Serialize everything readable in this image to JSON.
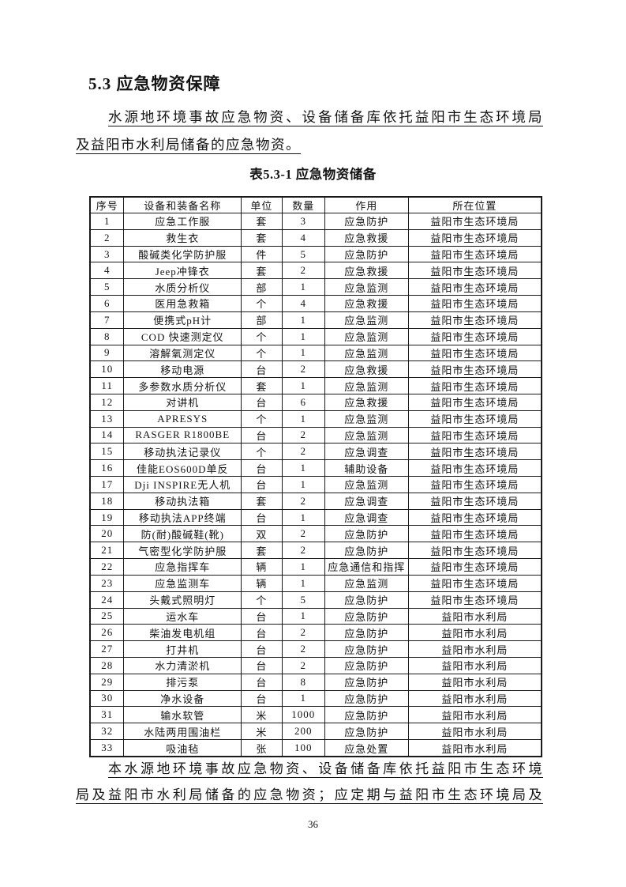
{
  "page": {
    "heading": "5.3 应急物资保障",
    "intro_line1": "水源地环境事故应急物资、设备储备库依托益阳市生态环境局",
    "intro_line2": "及益阳市水利局储备的应急物资。",
    "table_caption": "表5.3-1 应急物资储备",
    "footer_line1": "本水源地环境事故应急物资、设备储备库依托益阳市生态环境",
    "footer_line2": "局及益阳市水利局储备的应急物资；应定期与益阳市生态环境局及",
    "page_number": "36"
  },
  "table": {
    "headers": [
      "序号",
      "设备和装备名称",
      "单位",
      "数量",
      "作用",
      "所在位置"
    ],
    "rows": [
      [
        "1",
        "应急工作服",
        "套",
        "3",
        "应急防护",
        "益阳市生态环境局"
      ],
      [
        "2",
        "救生衣",
        "套",
        "4",
        "应急救援",
        "益阳市生态环境局"
      ],
      [
        "3",
        "酸碱类化学防护服",
        "件",
        "5",
        "应急防护",
        "益阳市生态环境局"
      ],
      [
        "4",
        "Jeep冲锋衣",
        "套",
        "2",
        "应急救援",
        "益阳市生态环境局"
      ],
      [
        "5",
        "水质分析仪",
        "部",
        "1",
        "应急监测",
        "益阳市生态环境局"
      ],
      [
        "6",
        "医用急救箱",
        "个",
        "4",
        "应急救援",
        "益阳市生态环境局"
      ],
      [
        "7",
        "便携式pH计",
        "部",
        "1",
        "应急监测",
        "益阳市生态环境局"
      ],
      [
        "8",
        "COD 快速测定仪",
        "个",
        "1",
        "应急监测",
        "益阳市生态环境局"
      ],
      [
        "9",
        "溶解氧测定仪",
        "个",
        "1",
        "应急监测",
        "益阳市生态环境局"
      ],
      [
        "10",
        "移动电源",
        "台",
        "2",
        "应急救援",
        "益阳市生态环境局"
      ],
      [
        "11",
        "多参数水质分析仪",
        "套",
        "1",
        "应急监测",
        "益阳市生态环境局"
      ],
      [
        "12",
        "对讲机",
        "台",
        "6",
        "应急救援",
        "益阳市生态环境局"
      ],
      [
        "13",
        "APRESYS",
        "个",
        "1",
        "应急监测",
        "益阳市生态环境局"
      ],
      [
        "14",
        "RASGER R1800BE",
        "台",
        "2",
        "应急监测",
        "益阳市生态环境局"
      ],
      [
        "15",
        "移动执法记录仪",
        "个",
        "2",
        "应急调查",
        "益阳市生态环境局"
      ],
      [
        "16",
        "佳能EOS600D单反",
        "台",
        "1",
        "辅助设备",
        "益阳市生态环境局"
      ],
      [
        "17",
        "Dji INSPIRE无人机",
        "台",
        "1",
        "应急监测",
        "益阳市生态环境局"
      ],
      [
        "18",
        "移动执法箱",
        "套",
        "2",
        "应急调查",
        "益阳市生态环境局"
      ],
      [
        "19",
        "移动执法APP终端",
        "台",
        "1",
        "应急调查",
        "益阳市生态环境局"
      ],
      [
        "20",
        "防(耐)酸碱鞋(靴)",
        "双",
        "2",
        "应急防护",
        "益阳市生态环境局"
      ],
      [
        "21",
        "气密型化学防护服",
        "套",
        "2",
        "应急防护",
        "益阳市生态环境局"
      ],
      [
        "22",
        "应急指挥车",
        "辆",
        "1",
        "应急通信和指挥",
        "益阳市生态环境局"
      ],
      [
        "23",
        "应急监测车",
        "辆",
        "1",
        "应急监测",
        "益阳市生态环境局"
      ],
      [
        "24",
        "头戴式照明灯",
        "个",
        "5",
        "应急防护",
        "益阳市生态环境局"
      ],
      [
        "25",
        "运水车",
        "台",
        "1",
        "应急防护",
        "益阳市水利局"
      ],
      [
        "26",
        "柴油发电机组",
        "台",
        "2",
        "应急防护",
        "益阳市水利局"
      ],
      [
        "27",
        "打井机",
        "台",
        "2",
        "应急防护",
        "益阳市水利局"
      ],
      [
        "28",
        "水力清淤机",
        "台",
        "2",
        "应急防护",
        "益阳市水利局"
      ],
      [
        "29",
        "排污泵",
        "台",
        "8",
        "应急防护",
        "益阳市水利局"
      ],
      [
        "30",
        "净水设备",
        "台",
        "1",
        "应急防护",
        "益阳市水利局"
      ],
      [
        "31",
        "输水软管",
        "米",
        "1000",
        "应急防护",
        "益阳市水利局"
      ],
      [
        "32",
        "水陆两用围油栏",
        "米",
        "200",
        "应急防护",
        "益阳市水利局"
      ],
      [
        "33",
        "吸油毡",
        "张",
        "100",
        "应急处置",
        "益阳市水利局"
      ]
    ]
  }
}
